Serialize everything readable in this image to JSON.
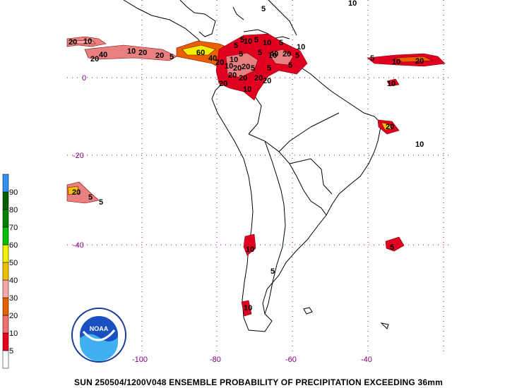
{
  "caption": "SUN 250504/1200V048  ENSEMBLE PROBABILITY OF PRECIPITATION EXCEEDING 36mm",
  "logo": {
    "text": "NOAA",
    "ring_text": "NATIONAL OCEANIC AND ATMOSPHERIC ADMINISTRATION"
  },
  "lon_labels": [
    "-100",
    "-80",
    "-60",
    "-40"
  ],
  "lat_labels": [
    "0",
    "-20",
    "-40"
  ],
  "legend": {
    "levels": [
      "5",
      "10",
      "20",
      "30",
      "40",
      "50",
      "60",
      "70",
      "80",
      "90"
    ],
    "colors": [
      "#ffffff",
      "#e8001c",
      "#f07070",
      "#e86000",
      "#f8a8a8",
      "#f0c000",
      "#f0f000",
      "#00c000",
      "#008000",
      "#006000",
      "#3090f0"
    ]
  },
  "contour_numbers": [
    "20",
    "10",
    "40",
    "20",
    "10",
    "20",
    "20",
    "5",
    "60",
    "40",
    "5",
    "5",
    "10",
    "5",
    "20",
    "10",
    "10",
    "20",
    "5",
    "20",
    "20",
    "20",
    "10",
    "20",
    "5",
    "10",
    "20",
    "5",
    "5",
    "10",
    "40",
    "5",
    "10",
    "20",
    "10",
    "20",
    "5",
    "5",
    "10",
    "5",
    "20",
    "5",
    "10",
    "5",
    "10",
    "10",
    "5",
    "20",
    "20",
    "5",
    "5",
    "10"
  ],
  "colors": {
    "map_line": "#000000",
    "grid_label": "#800080",
    "background": "#ffffff"
  }
}
